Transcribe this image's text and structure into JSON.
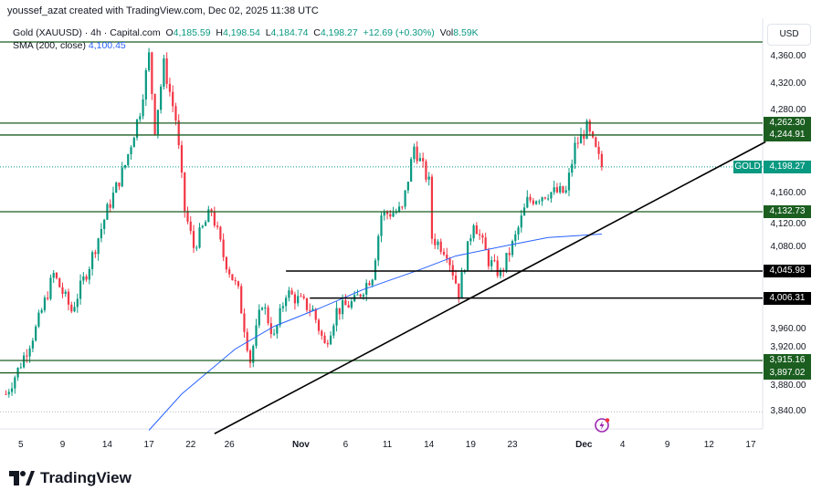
{
  "credit": "youssef_azat created with TradingView.com, Dec 02, 2025 11:38 UTC",
  "legend": {
    "symbol": "Gold (XAUUSD) · 4h · Capital.com",
    "o_label": "O",
    "o": "4,185.59",
    "h_label": "H",
    "h": "4,198.54",
    "l_label": "L",
    "l": "4,184.74",
    "c_label": "C",
    "c": "4,198.27",
    "change": "+12.69 (+0.30%)",
    "vol_label": "Vol",
    "vol": "8.59K"
  },
  "sma": {
    "label": "SMA (200, close)",
    "value": "4,100.45"
  },
  "currency": "USD",
  "price_axis": [
    "4,360.00",
    "4,320.00",
    "4,280.00",
    "4,160.00",
    "4,120.00",
    "4,080.00",
    "3,960.00",
    "3,920.00",
    "3,880.00",
    "3,840.00"
  ],
  "price_axis_values": [
    4360,
    4320,
    4280,
    4160,
    4120,
    4080,
    3960,
    3920,
    3880,
    3840
  ],
  "levels": [
    {
      "price": 4381,
      "label": "",
      "color": "#1b5e20"
    },
    {
      "price": 4262.3,
      "label": "4,262.30",
      "color": "#1b5e20"
    },
    {
      "price": 4244.91,
      "label": "4,244.91",
      "color": "#1b5e20"
    },
    {
      "price": 4132.73,
      "label": "4,132.73",
      "color": "#1b5e20"
    },
    {
      "price": 3915.16,
      "label": "3,915.16",
      "color": "#1b5e20"
    },
    {
      "price": 3897.02,
      "label": "3,897.02",
      "color": "#1b5e20"
    }
  ],
  "black_levels": [
    {
      "price": 4045.98,
      "label": "4,045.98",
      "start_bar": 94
    },
    {
      "price": 4006.31,
      "label": "4,006.31",
      "start_bar": 102
    }
  ],
  "last_price": {
    "symbol": "GOLD",
    "price": 4198.27,
    "label": "4,198.27"
  },
  "time_axis": [
    {
      "label": "5",
      "bar": 5
    },
    {
      "label": "9",
      "bar": 19
    },
    {
      "label": "14",
      "bar": 34
    },
    {
      "label": "17",
      "bar": 48
    },
    {
      "label": "22",
      "bar": 62
    },
    {
      "label": "26",
      "bar": 75
    },
    {
      "label": "Nov",
      "bar": 99,
      "bold": true
    },
    {
      "label": "6",
      "bar": 114
    },
    {
      "label": "11",
      "bar": 128
    },
    {
      "label": "14",
      "bar": 142
    },
    {
      "label": "19",
      "bar": 156
    },
    {
      "label": "23",
      "bar": 170
    },
    {
      "label": "Dec",
      "bar": 194,
      "bold": true
    },
    {
      "label": "4",
      "bar": 207
    },
    {
      "label": "9",
      "bar": 222
    },
    {
      "label": "12",
      "bar": 236
    },
    {
      "label": "17",
      "bar": 250
    }
  ],
  "chart_data": {
    "type": "candlestick",
    "timeframe": "4h",
    "x_range_bars": [
      -2,
      254
    ],
    "y_range": [
      3815,
      4405
    ],
    "price_path": [
      [
        0,
        3866
      ],
      [
        4,
        3901
      ],
      [
        10,
        3961
      ],
      [
        16,
        4041
      ],
      [
        22,
        3988
      ],
      [
        28,
        4055
      ],
      [
        34,
        4135
      ],
      [
        40,
        4201
      ],
      [
        45,
        4281
      ],
      [
        48,
        4361
      ],
      [
        50,
        4255
      ],
      [
        53,
        4348
      ],
      [
        57,
        4268
      ],
      [
        60,
        4135
      ],
      [
        63,
        4081
      ],
      [
        69,
        4135
      ],
      [
        73,
        4068
      ],
      [
        78,
        4015
      ],
      [
        82,
        3915
      ],
      [
        86,
        4001
      ],
      [
        90,
        3948
      ],
      [
        94,
        4015
      ],
      [
        99,
        4001
      ],
      [
        103,
        3988
      ],
      [
        107,
        3937
      ],
      [
        111,
        3988
      ],
      [
        117,
        4001
      ],
      [
        123,
        4041
      ],
      [
        126,
        4128
      ],
      [
        133,
        4135
      ],
      [
        137,
        4228
      ],
      [
        142,
        4175
      ],
      [
        143,
        4095
      ],
      [
        148,
        4075
      ],
      [
        152,
        4015
      ],
      [
        157,
        4121
      ],
      [
        162,
        4061
      ],
      [
        166,
        4041
      ],
      [
        171,
        4095
      ],
      [
        175,
        4148
      ],
      [
        182,
        4161
      ],
      [
        188,
        4161
      ],
      [
        191,
        4228
      ],
      [
        195,
        4255
      ],
      [
        198,
        4221
      ],
      [
        200,
        4198
      ]
    ],
    "sma200": [
      [
        48,
        3813
      ],
      [
        59,
        3866
      ],
      [
        77,
        3932
      ],
      [
        90,
        3965
      ],
      [
        105,
        3991
      ],
      [
        120,
        4019
      ],
      [
        139,
        4048
      ],
      [
        151,
        4068
      ],
      [
        169,
        4084
      ],
      [
        182,
        4095
      ],
      [
        200,
        4100
      ]
    ],
    "trendline": [
      [
        70,
        3808
      ],
      [
        255,
        4235
      ]
    ],
    "colors": {
      "up": "#089981",
      "down": "#f23645",
      "sma": "#2962ff"
    }
  },
  "logo": "TradingView"
}
